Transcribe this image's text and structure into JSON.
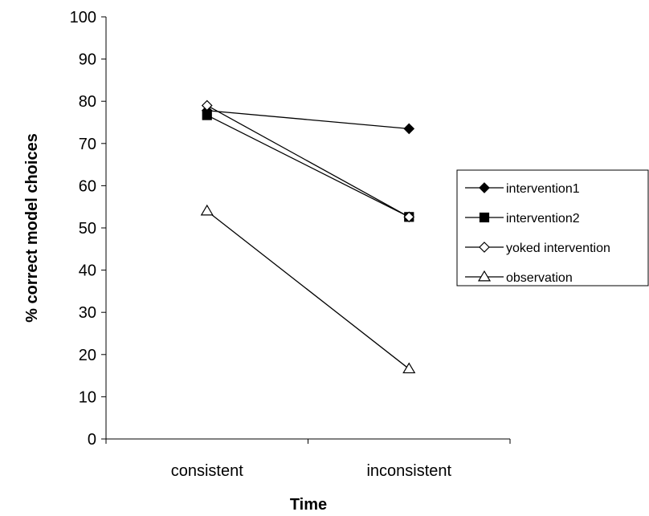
{
  "chart_data": {
    "type": "line",
    "categories": [
      "consistent",
      "inconsistent"
    ],
    "xlabel": "Time",
    "ylabel": "% correct model choices",
    "ylim": [
      0,
      100
    ],
    "yticks": [
      0,
      10,
      20,
      30,
      40,
      50,
      60,
      70,
      80,
      90,
      100
    ],
    "grid": false,
    "legend_position": "right",
    "series": [
      {
        "name": "intervention1",
        "marker": "diamond-filled",
        "values": [
          77.8,
          73.5
        ]
      },
      {
        "name": "intervention2",
        "marker": "square-filled",
        "values": [
          76.7,
          52.6
        ]
      },
      {
        "name": "yoked intervention",
        "marker": "diamond-open",
        "values": [
          79.0,
          52.6
        ]
      },
      {
        "name": "observation",
        "marker": "triangle-open",
        "values": [
          54.0,
          16.6
        ]
      }
    ]
  }
}
